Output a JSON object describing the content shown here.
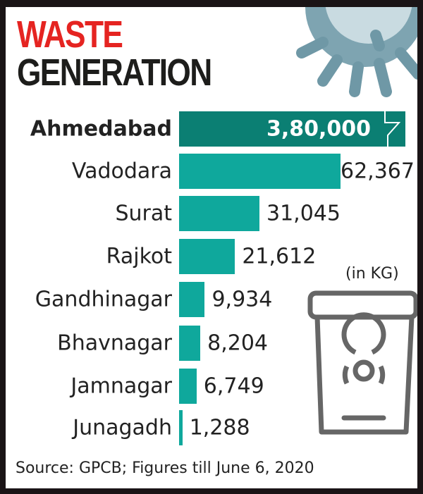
{
  "chart_data": {
    "type": "bar",
    "orientation": "horizontal",
    "title": "WASTE GENERATION",
    "title_lines": [
      "WASTE",
      "GENERATION"
    ],
    "unit": "(in KG)",
    "categories": [
      "Ahmedabad",
      "Vadodara",
      "Surat",
      "Rajkot",
      "Gandhinagar",
      "Bhavnagar",
      "Jamnagar",
      "Junagadh"
    ],
    "values": [
      380000,
      62367,
      31045,
      21612,
      9934,
      8204,
      6749,
      1288
    ],
    "value_labels": [
      "3,80,000",
      "62,367",
      "31,045",
      "21,612",
      "9,934",
      "8,204",
      "6,749",
      "1,288"
    ],
    "broken_bar": "Ahmedabad",
    "source": "Source: GPCB; Figures till June 6, 2020",
    "colors": {
      "bar": "#0fa89c",
      "highlight_bar": "#0b7f73",
      "title_top": "#e52421",
      "title_bottom": "#1d1d1b"
    }
  },
  "icons": [
    "coronavirus-icon",
    "biohazard-bin-icon",
    "axis-break-icon"
  ]
}
